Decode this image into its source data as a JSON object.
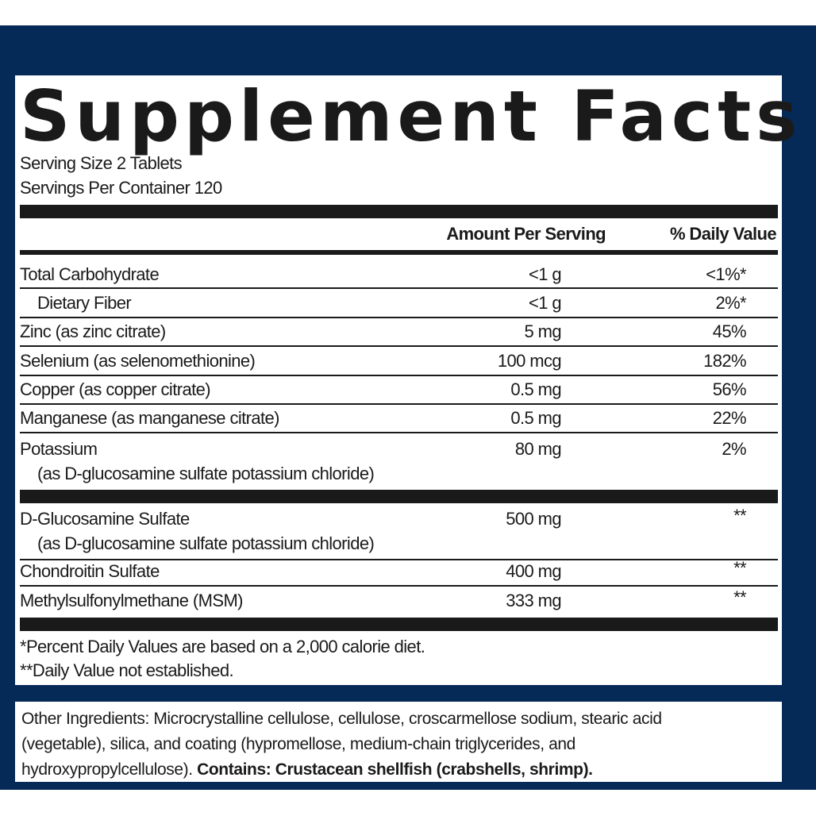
{
  "title": "Supplement Facts",
  "serving_size": "Serving Size 2 Tablets",
  "servings_per_container": "Servings Per Container 120",
  "headers": {
    "amount": "Amount Per Serving",
    "daily_value": "% Daily Value"
  },
  "rows": [
    {
      "name": "Total Carbohydrate",
      "amount": "<1 g",
      "dv": "<1%*"
    },
    {
      "name": "Dietary Fiber",
      "amount": "<1 g",
      "dv": "2%*"
    },
    {
      "name": "Zinc (as zinc citrate)",
      "amount": "5 mg",
      "dv": "45%"
    },
    {
      "name": "Selenium (as selenomethionine)",
      "amount": "100 mcg",
      "dv": "182%"
    },
    {
      "name": "Copper (as copper citrate)",
      "amount": "0.5 mg",
      "dv": "56%"
    },
    {
      "name": "Manganese (as manganese citrate)",
      "amount": "0.5 mg",
      "dv": "22%"
    },
    {
      "name": "Potassium",
      "sub": "(as D-glucosamine sulfate potassium chloride)",
      "amount": "80 mg",
      "dv": "2%"
    },
    {
      "name": "D-Glucosamine Sulfate",
      "sub": "(as D-glucosamine sulfate potassium chloride)",
      "amount": "500 mg",
      "dv": "**"
    },
    {
      "name": "Chondroitin Sulfate",
      "amount": "400 mg",
      "dv": "**"
    },
    {
      "name": "Methylsulfonylmethane (MSM)",
      "amount": "333 mg",
      "dv": "**"
    }
  ],
  "footnotes": [
    "*Percent Daily Values are based on a 2,000 calorie diet.",
    "**Daily Value not established."
  ],
  "other_ingredients": {
    "text": "Other Ingredients: Microcrystalline cellulose, cellulose, croscarmellose sodium, stearic acid (vegetable), silica, and coating (hypromellose, medium-chain triglycerides, and hydroxypropylcellulose). ",
    "allergen": "Contains: Crustacean shellfish (crabshells, shrimp)."
  },
  "colors": {
    "background": "#062a57",
    "panel": "#ffffff",
    "text": "#1a1a1a"
  }
}
